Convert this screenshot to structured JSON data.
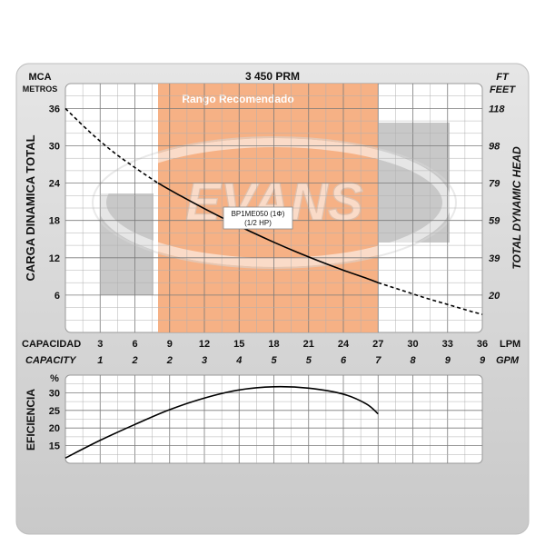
{
  "chart_data": [
    {
      "type": "line",
      "name": "head-capacity",
      "rpm_label": "3 450 PRM",
      "model_label": "BP1ME050 (1Φ)",
      "power_label": "(1/2 HP)",
      "recommended_range_label": "Rango Recomendado",
      "recommended_range_lpm": [
        8,
        27
      ],
      "watermark": "EVANS",
      "left_unit_top": "MCA",
      "left_unit_bottom": "METROS",
      "right_unit_top": "FT",
      "right_unit_bottom": "FEET",
      "ylabel_left": "CARGA DINAMICA TOTAL",
      "ylabel_right": "TOTAL DYNAMIC HEAD",
      "xlabel_lpm": "CAPACIDAD",
      "xunit_lpm": "LPM",
      "xlabel_gpm": "CAPACITY",
      "xunit_gpm": "GPM",
      "ylim": [
        0,
        40
      ],
      "xlim": [
        0,
        36
      ],
      "left_ticks": [
        "36",
        "30",
        "24",
        "18",
        "12",
        "6"
      ],
      "left_tick_values": [
        36,
        30,
        24,
        18,
        12,
        6
      ],
      "right_ticks": [
        "118",
        "98",
        "79",
        "59",
        "39",
        "20"
      ],
      "lpm_ticks": [
        "3",
        "6",
        "9",
        "12",
        "15",
        "18",
        "21",
        "24",
        "27",
        "30",
        "33",
        "36"
      ],
      "lpm_tick_values": [
        3,
        6,
        9,
        12,
        15,
        18,
        21,
        24,
        27,
        30,
        33,
        36
      ],
      "gpm_ticks": [
        "1",
        "2",
        "2",
        "3",
        "4",
        "5",
        "5",
        "6",
        "7",
        "8",
        "9",
        "9"
      ],
      "curve_solid": [
        [
          8,
          24
        ],
        [
          10,
          21.9
        ],
        [
          12,
          19.9
        ],
        [
          14,
          18
        ],
        [
          16,
          16.2
        ],
        [
          18,
          14.5
        ],
        [
          20,
          12.9
        ],
        [
          22,
          11.4
        ],
        [
          24,
          10
        ],
        [
          26,
          8.7
        ],
        [
          27,
          8
        ]
      ],
      "curve_dashed_before": [
        [
          0,
          36
        ],
        [
          2,
          32.4
        ],
        [
          4,
          29.2
        ],
        [
          6,
          26.5
        ],
        [
          8,
          24
        ]
      ],
      "curve_dashed_after": [
        [
          27,
          8
        ],
        [
          29,
          6.8
        ],
        [
          31,
          5.6
        ],
        [
          33,
          4.5
        ],
        [
          35,
          3.4
        ],
        [
          36,
          2.9
        ]
      ]
    },
    {
      "type": "line",
      "name": "efficiency",
      "ylabel": "EFICIENCIA",
      "yunit": "%",
      "yticks": [
        "30",
        "25",
        "20",
        "15"
      ],
      "ytick_values": [
        30,
        25,
        20,
        15
      ],
      "ylim": [
        10,
        35
      ],
      "xlim": [
        0,
        36
      ],
      "curve": [
        [
          0,
          11.5
        ],
        [
          3,
          16.5
        ],
        [
          6,
          21
        ],
        [
          9,
          25.2
        ],
        [
          12,
          28.5
        ],
        [
          15,
          30.8
        ],
        [
          18,
          31.7
        ],
        [
          21,
          31.3
        ],
        [
          24,
          29.6
        ],
        [
          26,
          26.8
        ],
        [
          27,
          24
        ]
      ]
    }
  ]
}
